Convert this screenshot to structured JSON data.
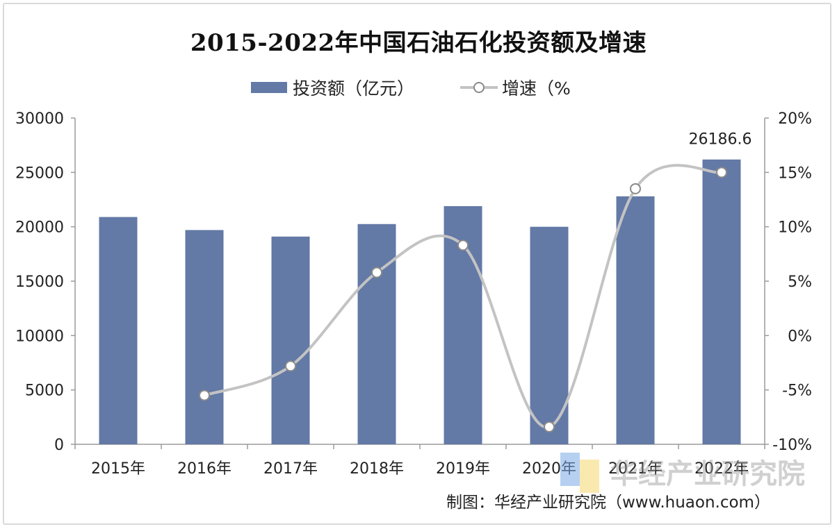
{
  "title": "2015-2022年中国石油石化投资额及增速",
  "source": "制图：华经产业研究院（www.huaon.com）",
  "watermark": "华经产业研究院",
  "colors": {
    "bar": "#6379a6",
    "line": "#c3c3c3",
    "axis": "#9a9a9a",
    "text": "#222222"
  },
  "chart_data": {
    "type": "bar+line",
    "categories": [
      "2015年",
      "2016年",
      "2017年",
      "2018年",
      "2019年",
      "2020年",
      "2021年",
      "2022年"
    ],
    "series": [
      {
        "name": "投资额（亿元）",
        "type": "bar",
        "axis": "left",
        "values": [
          20900,
          19700,
          19100,
          20250,
          21900,
          20000,
          22800,
          26186.6
        ]
      },
      {
        "name": "增速（%",
        "type": "line",
        "axis": "right",
        "values": [
          null,
          -5.5,
          -2.8,
          5.8,
          8.3,
          -8.4,
          13.5,
          15.0
        ]
      }
    ],
    "data_labels": [
      {
        "category": "2022年",
        "text": "26186.6"
      }
    ],
    "left_axis": {
      "ylim": [
        0,
        30000
      ],
      "ticks": [
        "0",
        "5000",
        "10000",
        "15000",
        "20000",
        "25000",
        "30000"
      ]
    },
    "right_axis": {
      "ylim": [
        -10,
        20
      ],
      "ticks": [
        "-10%",
        "-5%",
        "0%",
        "5%",
        "10%",
        "15%",
        "20%"
      ]
    },
    "legend": {
      "position": "top-center",
      "items": [
        "投资额（亿元）",
        "增速（%"
      ]
    },
    "grid": false
  }
}
